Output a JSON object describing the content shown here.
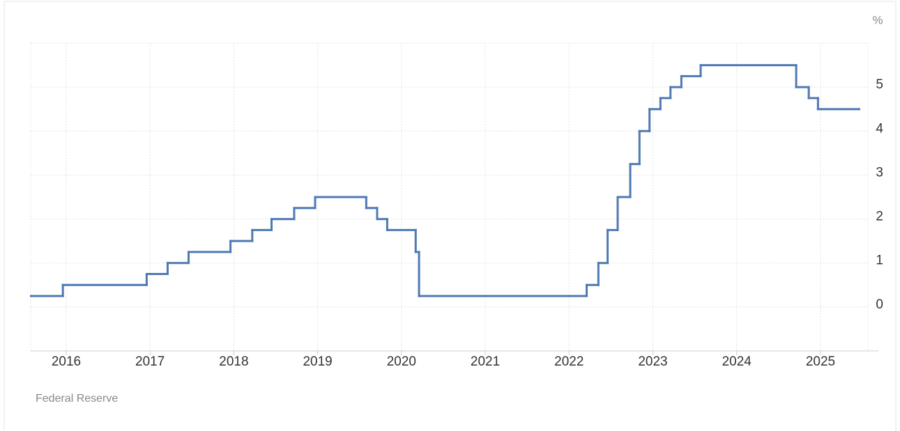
{
  "chart_data": {
    "type": "step",
    "unit": "%",
    "source": "Federal Reserve",
    "x": [
      2015.58,
      2015.96,
      2016.96,
      2017.21,
      2017.46,
      2017.96,
      2018.22,
      2018.45,
      2018.72,
      2018.97,
      2019.58,
      2019.71,
      2019.83,
      2020.17,
      2020.21,
      2022.21,
      2022.35,
      2022.46,
      2022.58,
      2022.73,
      2022.84,
      2022.96,
      2023.09,
      2023.21,
      2023.34,
      2023.57,
      2024.71,
      2024.86,
      2024.97,
      2025.46
    ],
    "values": [
      0.25,
      0.5,
      0.75,
      1.0,
      1.25,
      1.5,
      1.75,
      2.0,
      2.25,
      2.5,
      2.25,
      2.0,
      1.75,
      1.25,
      0.25,
      0.5,
      1.0,
      1.75,
      2.5,
      3.25,
      4.0,
      4.5,
      4.75,
      5.0,
      5.25,
      5.5,
      5.0,
      4.75,
      4.5,
      4.5
    ],
    "color": "#4f79b4",
    "xlim": [
      2015.576,
      2025.566
    ],
    "xticks": [
      2016,
      2017,
      2018,
      2019,
      2020,
      2021,
      2022,
      2023,
      2024,
      2025
    ],
    "ylim": [
      -1,
      6
    ],
    "yticks": [
      0,
      1,
      2,
      3,
      4,
      5
    ],
    "grid": true
  }
}
